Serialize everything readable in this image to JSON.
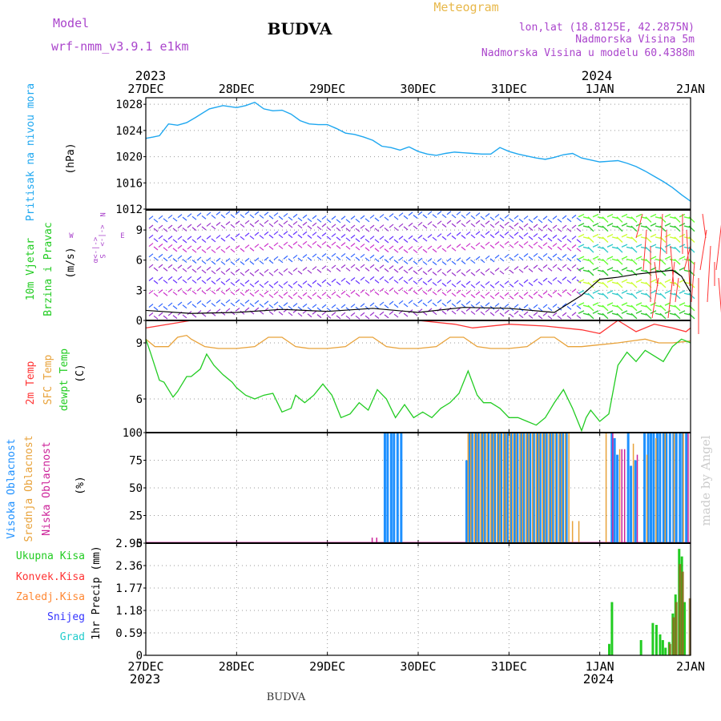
{
  "header": {
    "model_label": "Model",
    "model_name": "wrf-nmm_v3.9.1 e1km",
    "title": "BUDVA",
    "meteogram_label": "Meteogram",
    "lonlat": "lon,lat (18.8125E, 42.2875N)",
    "elevation": "Nadmorska Visina 5m",
    "model_elevation": "Nadmorska Visina u modelu 60.4388m",
    "footer": "BUDVA",
    "watermark": "made by Angel"
  },
  "colors": {
    "pressure": "#1ea7f0",
    "wind_green": "#22cc22",
    "temp_2m": "#ff3333",
    "sfc_temp": "#e8a23a",
    "dewpt": "#22cc22",
    "high_cloud": "#1e90ff",
    "mid_cloud": "#e8a23a",
    "low_cloud": "#cc2299",
    "total_precip": "#22cc22",
    "conv_precip": "#ff3333",
    "frozen": "#ff8833",
    "snow": "#3333ff",
    "hail": "#22cccc",
    "purple_text": "#aa44cc",
    "orange_text": "#e8b84a"
  },
  "time_axis": {
    "top_years": [
      "2023",
      "2024"
    ],
    "labels": [
      "27DEC",
      "28DEC",
      "29DEC",
      "30DEC",
      "31DEC",
      "1JAN",
      "2JAN"
    ],
    "bottom_years": [
      "2023",
      "2024"
    ]
  },
  "panel_labels": {
    "pressure": [
      "Pritisak na nivou mora",
      "(hPa)"
    ],
    "wind": [
      "10m Vjetar",
      "Brzina i Pravac",
      "(m/s)"
    ],
    "compass": [
      "N",
      "<-|->",
      "S",
      "W",
      "E",
      "α<-|->"
    ],
    "temp": [
      "2m Temp",
      "SFC Temp",
      "dewpt Temp",
      "(C)"
    ],
    "cloud": [
      "Visoka Oblacnost",
      "Srednja Oblacnost",
      "Niska Oblacnost",
      "(%)"
    ],
    "precip_legend": [
      "Ukupna Kisa",
      "Konvek.Kisa",
      "Zaledj.Kisa",
      "Snijeg",
      "Grad"
    ],
    "precip_axis": "1hr Precip (mm)"
  },
  "chart_data": [
    {
      "type": "line",
      "title": "",
      "ylabel": "Pritisak na nivou mora (hPa)",
      "x_unit": "days since 27DEC 00UTC",
      "ylim": [
        1012,
        1029
      ],
      "yticks": [
        1012,
        1016,
        1020,
        1024,
        1028
      ],
      "series": [
        {
          "name": "Pritisak na nivou mora",
          "x": [
            0,
            0.08,
            0.15,
            0.25,
            0.35,
            0.45,
            0.55,
            0.7,
            0.85,
            1.0,
            1.1,
            1.2,
            1.3,
            1.4,
            1.5,
            1.6,
            1.7,
            1.8,
            1.9,
            2.0,
            2.1,
            2.2,
            2.3,
            2.4,
            2.5,
            2.6,
            2.7,
            2.8,
            2.9,
            3.0,
            3.1,
            3.2,
            3.3,
            3.4,
            3.5,
            3.6,
            3.7,
            3.8,
            3.9,
            4.0,
            4.1,
            4.2,
            4.3,
            4.4,
            4.5,
            4.6,
            4.7,
            4.8,
            4.9,
            5.0,
            5.1,
            5.2,
            5.3,
            5.4,
            5.5,
            5.6,
            5.7,
            5.8,
            5.9,
            6.0
          ],
          "y": [
            1022.8,
            1023.0,
            1023.2,
            1025.0,
            1024.8,
            1025.2,
            1026.0,
            1027.3,
            1027.8,
            1027.5,
            1027.8,
            1028.3,
            1027.3,
            1027.0,
            1027.1,
            1026.5,
            1025.5,
            1025.0,
            1024.9,
            1024.9,
            1024.3,
            1023.6,
            1023.4,
            1023.0,
            1022.5,
            1021.6,
            1021.4,
            1021.0,
            1021.5,
            1020.8,
            1020.4,
            1020.2,
            1020.5,
            1020.7,
            1020.6,
            1020.5,
            1020.4,
            1020.4,
            1021.4,
            1020.8,
            1020.4,
            1020.1,
            1019.8,
            1019.6,
            1019.9,
            1020.3,
            1020.5,
            1019.8,
            1019.5,
            1019.2,
            1019.3,
            1019.4,
            1019.0,
            1018.5,
            1017.8,
            1017.0,
            1016.2,
            1015.3,
            1014.2,
            1013.2
          ]
        }
      ]
    },
    {
      "type": "line",
      "title": "",
      "ylabel": "10m Vjetar Brzina i Pravac (m/s)",
      "ylim": [
        0,
        11
      ],
      "yticks": [
        0,
        3,
        6,
        9
      ],
      "series": [
        {
          "name": "10m Vjetar",
          "x": [
            0,
            0.5,
            1,
            1.5,
            2,
            2.5,
            3,
            3.5,
            4,
            4.5,
            4.8,
            5.0,
            5.2,
            5.4,
            5.6,
            5.8,
            5.9,
            6.0
          ],
          "y": [
            1.0,
            0.7,
            0.8,
            1.1,
            0.9,
            1.2,
            0.8,
            1.3,
            1.2,
            0.8,
            2.5,
            4.1,
            4.3,
            4.6,
            4.8,
            5.0,
            4.4,
            2.8
          ]
        }
      ]
    },
    {
      "type": "line",
      "title": "",
      "ylabel": "(C)",
      "ylim": [
        4.2,
        10.2
      ],
      "yticks": [
        6,
        9
      ],
      "series": [
        {
          "name": "2m Temp",
          "x": [
            0,
            0.5,
            1,
            1.5,
            2,
            2.5,
            3,
            3.4,
            3.6,
            4.0,
            4.4,
            4.8,
            5.0,
            5.2,
            5.4,
            5.6,
            5.8,
            5.95,
            6.0
          ],
          "y": [
            9.8,
            10.2,
            10.2,
            10.2,
            10.2,
            10.2,
            10.2,
            10.0,
            9.8,
            10.0,
            9.9,
            9.7,
            9.5,
            10.2,
            9.6,
            10.0,
            9.8,
            9.6,
            9.8
          ]
        },
        {
          "name": "SFC Temp",
          "x": [
            0,
            0.1,
            0.25,
            0.35,
            0.45,
            0.5,
            0.65,
            0.8,
            1.0,
            1.2,
            1.35,
            1.5,
            1.65,
            1.8,
            2.0,
            2.2,
            2.35,
            2.5,
            2.65,
            2.8,
            3.0,
            3.2,
            3.35,
            3.5,
            3.65,
            3.8,
            4.0,
            4.2,
            4.35,
            4.5,
            4.65,
            4.8,
            5.0,
            5.2,
            5.35,
            5.5,
            5.65,
            5.8,
            6.0
          ],
          "y": [
            9.2,
            8.8,
            8.8,
            9.3,
            9.4,
            9.2,
            8.8,
            8.7,
            8.7,
            8.8,
            9.3,
            9.3,
            8.8,
            8.7,
            8.7,
            8.8,
            9.3,
            9.3,
            8.8,
            8.7,
            8.7,
            8.8,
            9.3,
            9.3,
            8.8,
            8.7,
            8.7,
            8.8,
            9.3,
            9.3,
            8.8,
            8.8,
            8.9,
            9.0,
            9.1,
            9.2,
            9.0,
            9.0,
            9.1
          ]
        },
        {
          "name": "dewpt Temp",
          "x": [
            0,
            0.05,
            0.15,
            0.2,
            0.3,
            0.35,
            0.45,
            0.5,
            0.6,
            0.67,
            0.75,
            0.85,
            0.95,
            1.0,
            1.1,
            1.2,
            1.3,
            1.4,
            1.5,
            1.6,
            1.65,
            1.75,
            1.85,
            1.95,
            2.05,
            2.15,
            2.25,
            2.35,
            2.45,
            2.55,
            2.65,
            2.75,
            2.85,
            2.95,
            3.05,
            3.15,
            3.25,
            3.35,
            3.45,
            3.55,
            3.65,
            3.72,
            3.8,
            3.9,
            4.0,
            4.1,
            4.2,
            4.3,
            4.4,
            4.5,
            4.6,
            4.7,
            4.8,
            4.85,
            4.9,
            5.0,
            5.1,
            5.2,
            5.3,
            5.4,
            5.5,
            5.6,
            5.7,
            5.8,
            5.9,
            6.0
          ],
          "y": [
            9.2,
            8.5,
            7.0,
            6.9,
            6.1,
            6.4,
            7.2,
            7.2,
            7.6,
            8.4,
            7.8,
            7.3,
            6.9,
            6.6,
            6.2,
            6.0,
            6.2,
            6.3,
            5.3,
            5.5,
            6.2,
            5.8,
            6.2,
            6.8,
            6.2,
            5.0,
            5.2,
            5.8,
            5.4,
            6.5,
            6.0,
            5.0,
            5.7,
            5.0,
            5.3,
            5.0,
            5.5,
            5.8,
            6.3,
            7.5,
            6.2,
            5.8,
            5.8,
            5.5,
            5.0,
            5.0,
            4.8,
            4.6,
            5.0,
            5.8,
            6.5,
            5.5,
            4.3,
            5.0,
            5.4,
            4.8,
            5.2,
            7.8,
            8.5,
            8.0,
            8.6,
            8.3,
            8.0,
            8.8,
            9.2,
            9.0
          ]
        }
      ]
    },
    {
      "type": "bar",
      "title": "",
      "ylabel": "(%)",
      "ylim": [
        0,
        100
      ],
      "yticks": [
        0,
        25,
        50,
        75,
        100
      ],
      "series": [
        {
          "name": "Visoka Oblacnost",
          "x": [
            2.62,
            2.65,
            2.69,
            2.72,
            2.76,
            2.8,
            3.52,
            3.55,
            3.58,
            3.62,
            3.65,
            3.69,
            3.72,
            3.76,
            3.8,
            3.83,
            3.87,
            3.9,
            3.94,
            3.97,
            4.01,
            4.05,
            4.08,
            4.12,
            4.15,
            4.19,
            4.22,
            4.26,
            4.3,
            4.33,
            4.37,
            4.4,
            4.44,
            4.47,
            4.51,
            4.55,
            4.58,
            4.62,
            5.12,
            5.15,
            5.18,
            5.3,
            5.33,
            5.38,
            5.48,
            5.52,
            5.55,
            5.58,
            5.62,
            5.65,
            5.69,
            5.72,
            5.76,
            5.8,
            5.83,
            5.87,
            5.9,
            5.94
          ],
          "y": [
            100,
            100,
            100,
            100,
            100,
            100,
            75,
            100,
            100,
            100,
            100,
            100,
            100,
            100,
            100,
            100,
            100,
            100,
            100,
            100,
            100,
            100,
            100,
            100,
            100,
            100,
            100,
            100,
            100,
            100,
            100,
            100,
            100,
            100,
            100,
            100,
            100,
            100,
            100,
            95,
            80,
            100,
            70,
            75,
            100,
            100,
            100,
            100,
            100,
            100,
            100,
            100,
            100,
            100,
            100,
            100,
            100,
            100
          ]
        },
        {
          "name": "Srednja Oblacnost",
          "x": [
            3.53,
            3.56,
            3.6,
            3.63,
            3.67,
            3.7,
            3.74,
            3.78,
            3.81,
            3.85,
            3.88,
            3.92,
            3.95,
            3.99,
            4.02,
            4.06,
            4.1,
            4.13,
            4.17,
            4.2,
            4.24,
            4.28,
            4.31,
            4.35,
            4.38,
            4.42,
            4.45,
            4.49,
            4.53,
            4.56,
            4.6,
            4.64,
            4.68,
            4.75,
            5.05,
            5.2,
            5.35,
            5.5,
            5.6,
            5.7,
            5.8,
            5.9
          ],
          "y": [
            100,
            100,
            100,
            100,
            100,
            100,
            100,
            100,
            100,
            100,
            100,
            100,
            100,
            100,
            100,
            100,
            100,
            100,
            100,
            100,
            100,
            100,
            100,
            100,
            100,
            100,
            100,
            100,
            100,
            100,
            100,
            100,
            20,
            20,
            100,
            85,
            90,
            80,
            95,
            100,
            100,
            100
          ]
        },
        {
          "name": "Niska Oblacnost",
          "x": [
            2.5,
            2.55,
            5.15,
            5.25,
            5.28,
            5.42,
            5.98
          ],
          "y": [
            5,
            5,
            100,
            85,
            85,
            80,
            100
          ]
        }
      ]
    },
    {
      "type": "bar",
      "title": "",
      "ylabel": "1hr Precip (mm)",
      "ylim": [
        0,
        2.95
      ],
      "yticks": [
        0,
        0.59,
        1.18,
        1.77,
        2.36,
        2.95
      ],
      "series": [
        {
          "name": "Ukupna Kisa",
          "x": [
            5.1,
            5.13,
            5.45,
            5.58,
            5.62,
            5.66,
            5.69,
            5.72,
            5.76,
            5.8,
            5.83,
            5.87,
            5.9,
            5.93
          ],
          "y": [
            0.3,
            1.4,
            0.4,
            0.85,
            0.8,
            0.55,
            0.4,
            0.2,
            0.35,
            1.1,
            1.6,
            2.8,
            2.6,
            1.4
          ]
        },
        {
          "name": "Konvek.Kisa",
          "x": [
            5.76,
            5.8,
            5.83,
            5.87,
            5.9,
            5.98
          ],
          "y": [
            0.3,
            1.0,
            1.4,
            2.4,
            2.2,
            1.5
          ]
        }
      ]
    }
  ]
}
